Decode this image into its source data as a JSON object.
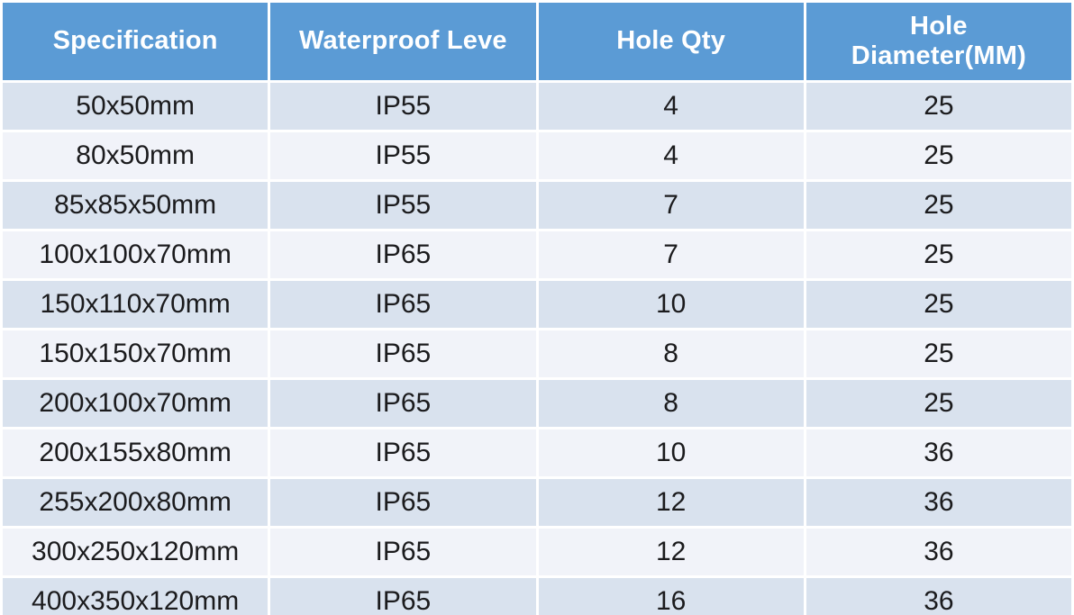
{
  "table": {
    "columns": [
      {
        "label": "Specification"
      },
      {
        "label": "Waterproof Leve"
      },
      {
        "label": "Hole Qty"
      },
      {
        "label": "Hole Diameter(MM)"
      }
    ],
    "rows": [
      [
        "50x50mm",
        "IP55",
        "4",
        "25"
      ],
      [
        "80x50mm",
        "IP55",
        "4",
        "25"
      ],
      [
        "85x85x50mm",
        "IP55",
        "7",
        "25"
      ],
      [
        "100x100x70mm",
        "IP65",
        "7",
        "25"
      ],
      [
        "150x110x70mm",
        "IP65",
        "10",
        "25"
      ],
      [
        "150x150x70mm",
        "IP65",
        "8",
        "25"
      ],
      [
        "200x100x70mm",
        "IP65",
        "8",
        "25"
      ],
      [
        "200x155x80mm",
        "IP65",
        "10",
        "36"
      ],
      [
        "255x200x80mm",
        "IP65",
        "12",
        "36"
      ],
      [
        "300x250x120mm",
        "IP65",
        "12",
        "36"
      ],
      [
        "400x350x120mm",
        "IP65",
        "16",
        "36"
      ]
    ],
    "colors": {
      "header_bg": "#5b9bd5",
      "header_text": "#ffffff",
      "row_odd_bg": "#d9e2ee",
      "row_even_bg": "#f1f3f9",
      "cell_text": "#1b1b1d",
      "separator": "#ffffff"
    }
  }
}
